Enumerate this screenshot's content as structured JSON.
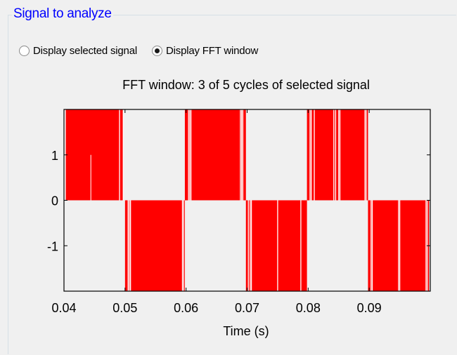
{
  "panel": {
    "title": "Signal to analyze"
  },
  "radios": [
    {
      "label": "Display selected signal",
      "checked": false
    },
    {
      "label": "Display FFT window",
      "checked": true
    }
  ],
  "colors": {
    "signal": "#ff0000",
    "title": "#0000ff",
    "background": "#f0f0f0"
  },
  "chart_data": {
    "type": "line",
    "title": "FFT window: 3 of 5 cycles of selected signal",
    "xlabel": "Time (s)",
    "ylabel": "",
    "xlim": [
      0.04,
      0.1
    ],
    "ylim": [
      -2,
      2
    ],
    "xticks": [
      "0.04",
      "0.05",
      "0.06",
      "0.07",
      "0.08",
      "0.09"
    ],
    "yticks": [
      "1",
      "0",
      "-1"
    ],
    "grid": false,
    "series": [
      {
        "description": "PWM-like switching signal alternating between +2/0 in positive half-cycles and 0/-2 in negative half-cycles",
        "positive_half_cycles": [
          [
            0.04,
            0.0497
          ],
          [
            0.0598,
            0.0698
          ],
          [
            0.0798,
            0.0898
          ]
        ],
        "negative_half_cycles": [
          [
            0.05,
            0.0598
          ],
          [
            0.0698,
            0.0798
          ],
          [
            0.0898,
            0.0998
          ]
        ],
        "notch_times": [
          0.04008,
          0.04022,
          0.0491,
          0.0497,
          0.0505,
          0.0507,
          0.0509,
          0.0594,
          0.0596,
          0.0604,
          0.0606,
          0.0608,
          0.0689,
          0.0691,
          0.0693,
          0.0702,
          0.0705,
          0.0707,
          0.075,
          0.0788,
          0.0803,
          0.0805,
          0.081,
          0.0842,
          0.0845,
          0.085,
          0.0852,
          0.0893,
          0.0895,
          0.0903,
          0.0905,
          0.0948,
          0.095,
          0.0993,
          0.0995
        ],
        "thin_spike_times": [
          0.0444
        ]
      }
    ]
  }
}
